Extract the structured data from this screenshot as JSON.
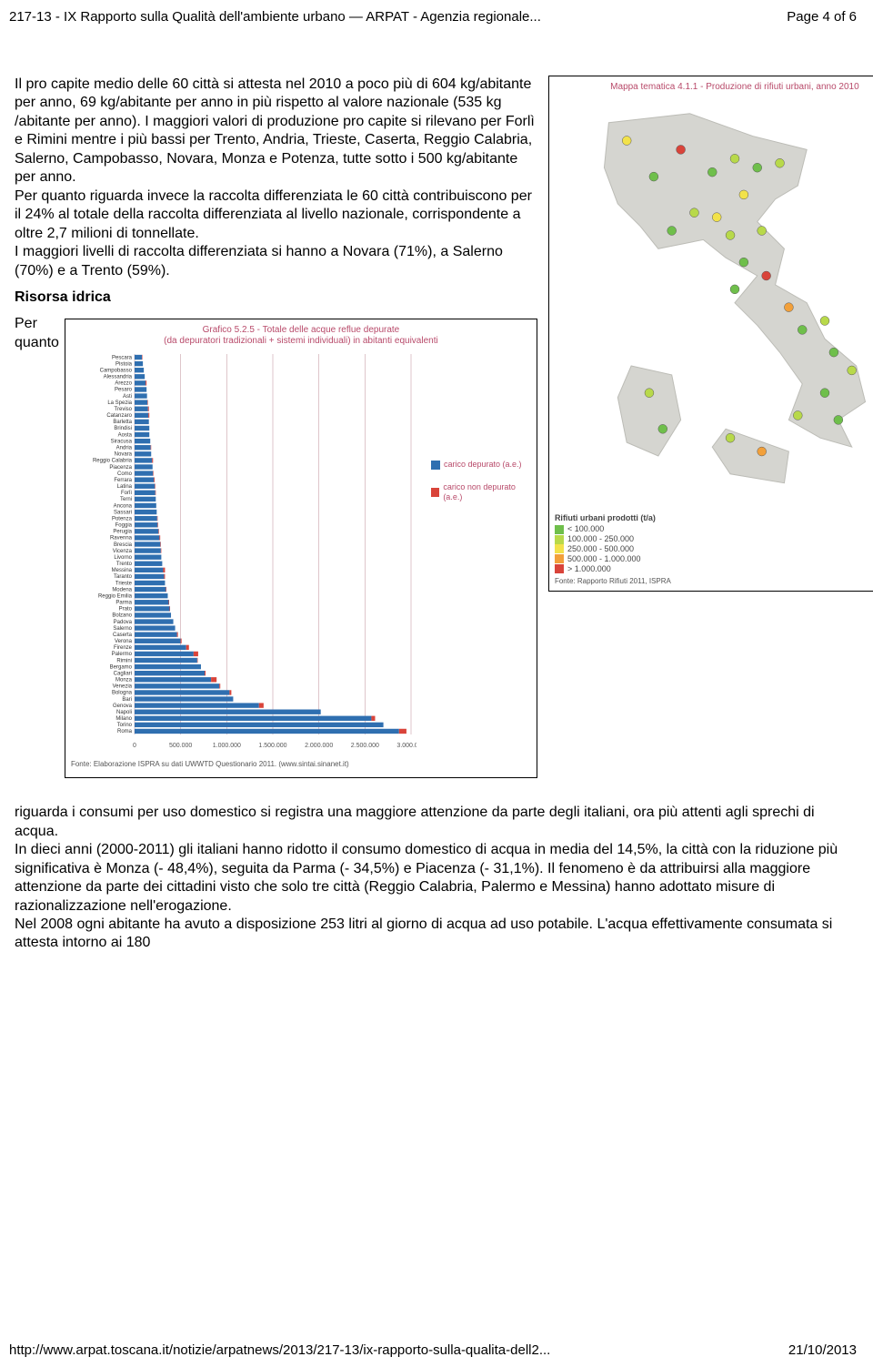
{
  "header": {
    "left": "217-13 - IX Rapporto sulla Qualità dell'ambiente urbano — ARPAT - Agenzia regionale...",
    "right": "Page 4 of 6"
  },
  "paragraph1": "Il pro capite medio delle 60 città si attesta nel 2010 a poco più di 604 kg/abitante per anno, 69 kg/abitante per anno in più rispetto al valore nazionale (535 kg /abitante per anno). I maggiori valori di produzione pro capite si rilevano per Forlì e Rimini mentre i più bassi per Trento, Andria, Trieste, Caserta, Reggio Calabria, Salerno, Campobasso, Novara, Monza e Potenza, tutte sotto i 500 kg/abitante per anno.",
  "paragraph2": "Per quanto riguarda invece la raccolta differenziata le 60 città contribuiscono per il 24% al totale della raccolta differenziata al livello nazionale, corrispondente a oltre 2,7 milioni di tonnellate.",
  "paragraph3": "I maggiori livelli di raccolta differenziata si hanno a Novara (71%), a Salerno (70%) e a Trento (59%).",
  "risorsa": {
    "heading": "Risorsa idrica",
    "per": "Per",
    "quanto": "quanto"
  },
  "lower": "riguarda i consumi per uso domestico si registra una maggiore attenzione da parte degli italiani, ora più attenti agli sprechi di acqua.\nIn dieci anni (2000-2011) gli italiani hanno ridotto il consumo domestico di acqua in media del 14,5%, la città con la riduzione più significativa è Monza (- 48,4%), seguita da Parma (- 34,5%) e Piacenza (- 31,1%). Il fenomeno è da attribuirsi alla maggiore attenzione da parte dei cittadini visto che solo tre città (Reggio Calabria, Palermo e Messina) hanno adottato misure di razionalizzazione nell'erogazione.\nNel 2008 ogni abitante ha avuto a disposizione 253 litri al giorno di acqua ad uso potabile. L'acqua effettivamente consumata si attesta intorno ai 180",
  "footer": {
    "left": "http://www.arpat.toscana.it/notizie/arpatnews/2013/217-13/ix-rapporto-sulla-qualita-dell2...",
    "right": "21/10/2013"
  },
  "map": {
    "title": "Mappa tematica 4.1.1 - Produzione di rifiuti urbani, anno 2010",
    "legend_title": "Rifiuti urbani prodotti (t/a)",
    "legend": [
      {
        "color": "#6fbf4b",
        "label": "< 100.000"
      },
      {
        "color": "#b8d94a",
        "label": "100.000 - 250.000"
      },
      {
        "color": "#f2e24a",
        "label": "250.000 - 500.000"
      },
      {
        "color": "#f2a03a",
        "label": "500.000 - 1.000.000"
      },
      {
        "color": "#d9443a",
        "label": "> 1.000.000"
      }
    ],
    "source": "Fonte: Rapporto Rifiuti 2011, ISPRA",
    "land_color": "#d5d5d0",
    "sea_color": "#ffffff",
    "points": [
      {
        "x": 80,
        "y": 50,
        "c": "#f2e24a"
      },
      {
        "x": 140,
        "y": 60,
        "c": "#d9443a"
      },
      {
        "x": 110,
        "y": 90,
        "c": "#6fbf4b"
      },
      {
        "x": 175,
        "y": 85,
        "c": "#6fbf4b"
      },
      {
        "x": 200,
        "y": 70,
        "c": "#b8d94a"
      },
      {
        "x": 225,
        "y": 80,
        "c": "#6fbf4b"
      },
      {
        "x": 250,
        "y": 75,
        "c": "#b8d94a"
      },
      {
        "x": 210,
        "y": 110,
        "c": "#f2e24a"
      },
      {
        "x": 180,
        "y": 135,
        "c": "#f2e24a"
      },
      {
        "x": 155,
        "y": 130,
        "c": "#b8d94a"
      },
      {
        "x": 130,
        "y": 150,
        "c": "#6fbf4b"
      },
      {
        "x": 195,
        "y": 155,
        "c": "#b8d94a"
      },
      {
        "x": 230,
        "y": 150,
        "c": "#b8d94a"
      },
      {
        "x": 210,
        "y": 185,
        "c": "#6fbf4b"
      },
      {
        "x": 235,
        "y": 200,
        "c": "#d9443a"
      },
      {
        "x": 200,
        "y": 215,
        "c": "#6fbf4b"
      },
      {
        "x": 260,
        "y": 235,
        "c": "#f2a03a"
      },
      {
        "x": 275,
        "y": 260,
        "c": "#6fbf4b"
      },
      {
        "x": 300,
        "y": 250,
        "c": "#b8d94a"
      },
      {
        "x": 310,
        "y": 285,
        "c": "#6fbf4b"
      },
      {
        "x": 330,
        "y": 305,
        "c": "#b8d94a"
      },
      {
        "x": 300,
        "y": 330,
        "c": "#6fbf4b"
      },
      {
        "x": 270,
        "y": 355,
        "c": "#b8d94a"
      },
      {
        "x": 230,
        "y": 395,
        "c": "#f2a03a"
      },
      {
        "x": 195,
        "y": 380,
        "c": "#b8d94a"
      },
      {
        "x": 315,
        "y": 360,
        "c": "#6fbf4b"
      },
      {
        "x": 105,
        "y": 330,
        "c": "#b8d94a"
      },
      {
        "x": 120,
        "y": 370,
        "c": "#6fbf4b"
      }
    ]
  },
  "chart": {
    "title": "Grafico 5.2.5 - Totale delle acque reflue depurate",
    "subtitle": "(da depuratori tradizionali + sistemi individuali) in abitanti equivalenti",
    "cities": [
      "Pescara",
      "Pistoia",
      "Campobasso",
      "Alessandria",
      "Arezzo",
      "Pesaro",
      "Asti",
      "La Spezia",
      "Treviso",
      "Catanzaro",
      "Barletta",
      "Brindisi",
      "Aosta",
      "Siracusa",
      "Andria",
      "Novara",
      "Reggio Calabria",
      "Piacenza",
      "Como",
      "Ferrara",
      "Latina",
      "Forlì",
      "Terni",
      "Ancona",
      "Sassari",
      "Potenza",
      "Foggia",
      "Perugia",
      "Ravenna",
      "Brescia",
      "Vicenza",
      "Livorno",
      "Trento",
      "Messina",
      "Taranto",
      "Trieste",
      "Modena",
      "Reggio Emilia",
      "Parma",
      "Prato",
      "Bolzano",
      "Padova",
      "Salerno",
      "Caserta",
      "Verona",
      "Firenze",
      "Palermo",
      "Rimini",
      "Bergamo",
      "Cagliari",
      "Monza",
      "Venezia",
      "Bologna",
      "Bari",
      "Genova",
      "Napoli",
      "Milano",
      "Torino",
      "Roma"
    ],
    "depurato": [
      80,
      90,
      100,
      110,
      120,
      130,
      135,
      140,
      145,
      150,
      155,
      160,
      160,
      170,
      175,
      180,
      190,
      195,
      200,
      210,
      220,
      225,
      230,
      235,
      240,
      245,
      250,
      260,
      270,
      280,
      285,
      290,
      300,
      310,
      320,
      330,
      340,
      360,
      370,
      380,
      395,
      420,
      440,
      460,
      500,
      560,
      640,
      680,
      720,
      760,
      830,
      920,
      1030,
      1070,
      1350,
      2020,
      2570,
      2700,
      2870
    ],
    "non_depurato": [
      5,
      0,
      0,
      0,
      10,
      0,
      0,
      5,
      10,
      10,
      0,
      0,
      0,
      0,
      5,
      0,
      10,
      0,
      5,
      8,
      5,
      5,
      0,
      0,
      0,
      5,
      5,
      5,
      8,
      5,
      5,
      0,
      0,
      20,
      10,
      0,
      5,
      0,
      5,
      5,
      0,
      0,
      0,
      10,
      10,
      30,
      50,
      5,
      0,
      10,
      60,
      10,
      20,
      0,
      50,
      0,
      40,
      0,
      80
    ],
    "xmax": 3000,
    "xticks": [
      0,
      500000,
      1000000,
      1500000,
      2000000,
      2500000,
      3000000
    ],
    "xtick_labels": [
      "0",
      "500.000",
      "1.000.000",
      "1.500.000",
      "2.000.000",
      "2.500.000",
      "3.000.000"
    ],
    "colors": {
      "depurato": "#2f6fb0",
      "non_depurato": "#d9443a",
      "grid": "#c9a0a8"
    },
    "legend": [
      {
        "color": "#2f6fb0",
        "label": "carico depurato (a.e.)"
      },
      {
        "color": "#d9443a",
        "label": "carico non depurato (a.e.)"
      }
    ],
    "source": "Fonte: Elaborazione ISPRA su dati UWWTD Questionario 2011. (www.sintai.sinanet.it)"
  }
}
